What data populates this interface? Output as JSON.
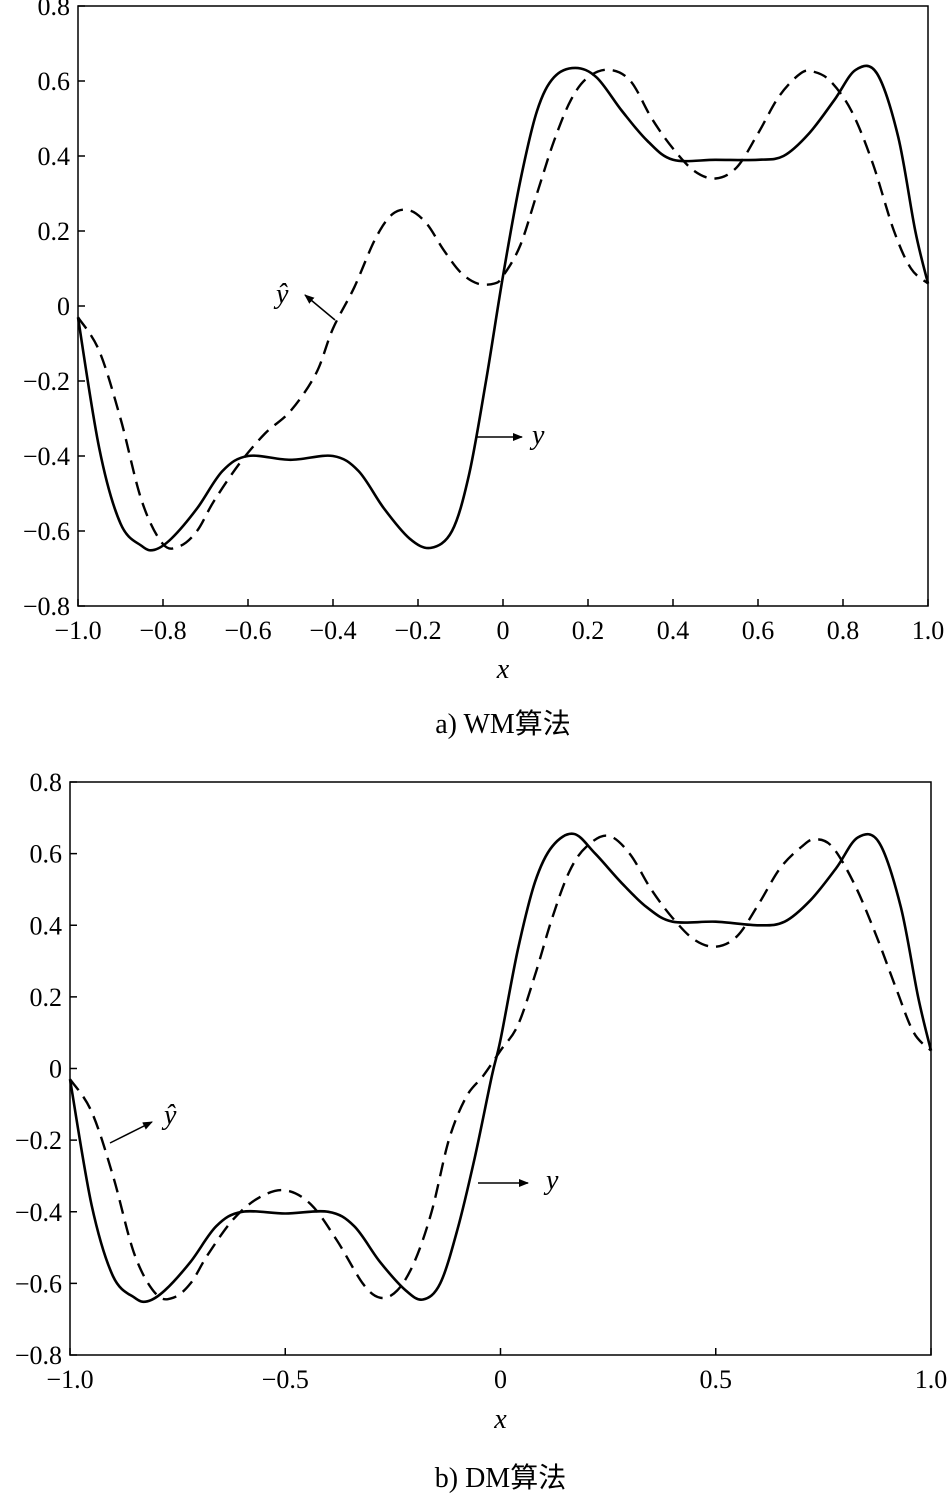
{
  "chart_data": [
    {
      "type": "line",
      "caption": "a) WM算法",
      "xlabel": "x",
      "ylabel": "",
      "xlim": [
        -1.0,
        1.0
      ],
      "ylim": [
        -0.8,
        0.8
      ],
      "x_ticks": [
        -1.0,
        -0.8,
        -0.6,
        -0.4,
        -0.2,
        0,
        0.2,
        0.4,
        0.6,
        0.8,
        1.0
      ],
      "x_tick_labels": [
        "−1.0",
        "−0.8",
        "−0.6",
        "−0.4",
        "−0.2",
        "0",
        "0.2",
        "0.4",
        "0.6",
        "0.8",
        "1.0"
      ],
      "y_ticks": [
        0.8,
        0.6,
        0.4,
        0.2,
        0,
        -0.2,
        -0.4,
        -0.6,
        -0.8
      ],
      "y_tick_labels": [
        "0.8",
        "0.6",
        "0.4",
        "0.2",
        "0",
        "−0.2",
        "−0.4",
        "−0.6",
        "−0.8"
      ],
      "grid": false,
      "series": [
        {
          "name": "y",
          "style": "solid",
          "x": [
            -1.0,
            -0.95,
            -0.9,
            -0.85,
            -0.82,
            -0.78,
            -0.72,
            -0.66,
            -0.6,
            -0.5,
            -0.4,
            -0.34,
            -0.28,
            -0.22,
            -0.17,
            -0.12,
            -0.08,
            -0.04,
            0.0,
            0.04,
            0.08,
            0.12,
            0.17,
            0.22,
            0.28,
            0.34,
            0.4,
            0.5,
            0.6,
            0.66,
            0.72,
            0.78,
            0.83,
            0.88,
            0.93,
            0.97,
            1.0
          ],
          "values": [
            -0.03,
            -0.38,
            -0.58,
            -0.64,
            -0.65,
            -0.62,
            -0.54,
            -0.44,
            -0.4,
            -0.41,
            -0.4,
            -0.44,
            -0.54,
            -0.62,
            -0.645,
            -0.6,
            -0.45,
            -0.2,
            0.08,
            0.33,
            0.52,
            0.61,
            0.635,
            0.61,
            0.52,
            0.44,
            0.39,
            0.39,
            0.39,
            0.4,
            0.46,
            0.55,
            0.63,
            0.62,
            0.45,
            0.2,
            0.06
          ]
        },
        {
          "name": "ŷ",
          "style": "dashed",
          "x": [
            -1.0,
            -0.95,
            -0.9,
            -0.85,
            -0.8,
            -0.76,
            -0.72,
            -0.68,
            -0.62,
            -0.56,
            -0.5,
            -0.44,
            -0.4,
            -0.35,
            -0.3,
            -0.26,
            -0.22,
            -0.18,
            -0.14,
            -0.1,
            -0.06,
            -0.02,
            0.0,
            0.04,
            0.08,
            0.12,
            0.16,
            0.2,
            0.25,
            0.3,
            0.35,
            0.4,
            0.45,
            0.5,
            0.55,
            0.6,
            0.65,
            0.7,
            0.73,
            0.77,
            0.82,
            0.87,
            0.92,
            0.96,
            1.0
          ],
          "values": [
            -0.03,
            -0.12,
            -0.3,
            -0.52,
            -0.635,
            -0.64,
            -0.6,
            -0.52,
            -0.42,
            -0.34,
            -0.28,
            -0.18,
            -0.06,
            0.05,
            0.18,
            0.245,
            0.255,
            0.22,
            0.15,
            0.09,
            0.06,
            0.06,
            0.08,
            0.16,
            0.3,
            0.44,
            0.55,
            0.61,
            0.63,
            0.6,
            0.5,
            0.42,
            0.36,
            0.34,
            0.37,
            0.46,
            0.56,
            0.62,
            0.625,
            0.6,
            0.52,
            0.38,
            0.2,
            0.1,
            0.06
          ]
        }
      ],
      "annotations": [
        {
          "text": "ŷ",
          "series": "ŷ"
        },
        {
          "text": "y",
          "series": "y"
        }
      ]
    },
    {
      "type": "line",
      "caption": "b) DM算法",
      "xlabel": "x",
      "ylabel": "",
      "xlim": [
        -1.0,
        1.0
      ],
      "ylim": [
        -0.8,
        0.8
      ],
      "x_ticks": [
        -1.0,
        -0.5,
        0,
        0.5,
        1.0
      ],
      "x_tick_labels": [
        "−1.0",
        "−0.5",
        "0",
        "0.5",
        "1.0"
      ],
      "y_ticks": [
        0.8,
        0.6,
        0.4,
        0.2,
        0,
        -0.2,
        -0.4,
        -0.6,
        -0.8
      ],
      "y_tick_labels": [
        "0.8",
        "0.6",
        "0.4",
        "0.2",
        "0",
        "−0.2",
        "−0.4",
        "−0.6",
        "−0.8"
      ],
      "grid": false,
      "series": [
        {
          "name": "y",
          "style": "solid",
          "x": [
            -1.0,
            -0.95,
            -0.9,
            -0.85,
            -0.82,
            -0.78,
            -0.72,
            -0.66,
            -0.6,
            -0.5,
            -0.4,
            -0.34,
            -0.28,
            -0.22,
            -0.18,
            -0.14,
            -0.1,
            -0.06,
            -0.02,
            0.0,
            0.04,
            0.08,
            0.12,
            0.17,
            0.22,
            0.28,
            0.34,
            0.4,
            0.5,
            0.6,
            0.66,
            0.72,
            0.78,
            0.83,
            0.88,
            0.93,
            0.97,
            1.0
          ],
          "values": [
            -0.03,
            -0.38,
            -0.58,
            -0.64,
            -0.65,
            -0.62,
            -0.54,
            -0.44,
            -0.4,
            -0.405,
            -0.4,
            -0.44,
            -0.54,
            -0.62,
            -0.645,
            -0.6,
            -0.45,
            -0.25,
            -0.02,
            0.08,
            0.33,
            0.52,
            0.62,
            0.655,
            0.6,
            0.52,
            0.45,
            0.41,
            0.41,
            0.4,
            0.41,
            0.47,
            0.56,
            0.645,
            0.63,
            0.45,
            0.2,
            0.05
          ]
        },
        {
          "name": "ŷ",
          "style": "dashed",
          "x": [
            -1.0,
            -0.95,
            -0.9,
            -0.85,
            -0.8,
            -0.76,
            -0.72,
            -0.68,
            -0.62,
            -0.56,
            -0.5,
            -0.44,
            -0.38,
            -0.32,
            -0.28,
            -0.24,
            -0.2,
            -0.16,
            -0.12,
            -0.08,
            -0.04,
            0.0,
            0.04,
            0.08,
            0.12,
            0.16,
            0.2,
            0.25,
            0.3,
            0.35,
            0.4,
            0.45,
            0.5,
            0.55,
            0.6,
            0.65,
            0.7,
            0.73,
            0.77,
            0.82,
            0.87,
            0.92,
            0.96,
            1.0
          ],
          "values": [
            -0.03,
            -0.12,
            -0.3,
            -0.52,
            -0.63,
            -0.64,
            -0.6,
            -0.52,
            -0.42,
            -0.36,
            -0.34,
            -0.38,
            -0.48,
            -0.6,
            -0.64,
            -0.62,
            -0.54,
            -0.4,
            -0.2,
            -0.08,
            -0.02,
            0.05,
            0.12,
            0.26,
            0.42,
            0.55,
            0.62,
            0.65,
            0.6,
            0.5,
            0.42,
            0.36,
            0.34,
            0.37,
            0.46,
            0.56,
            0.62,
            0.64,
            0.62,
            0.52,
            0.38,
            0.22,
            0.1,
            0.05
          ]
        }
      ],
      "annotations": [
        {
          "text": "ŷ",
          "series": "ŷ"
        },
        {
          "text": "y",
          "series": "y"
        }
      ]
    }
  ]
}
